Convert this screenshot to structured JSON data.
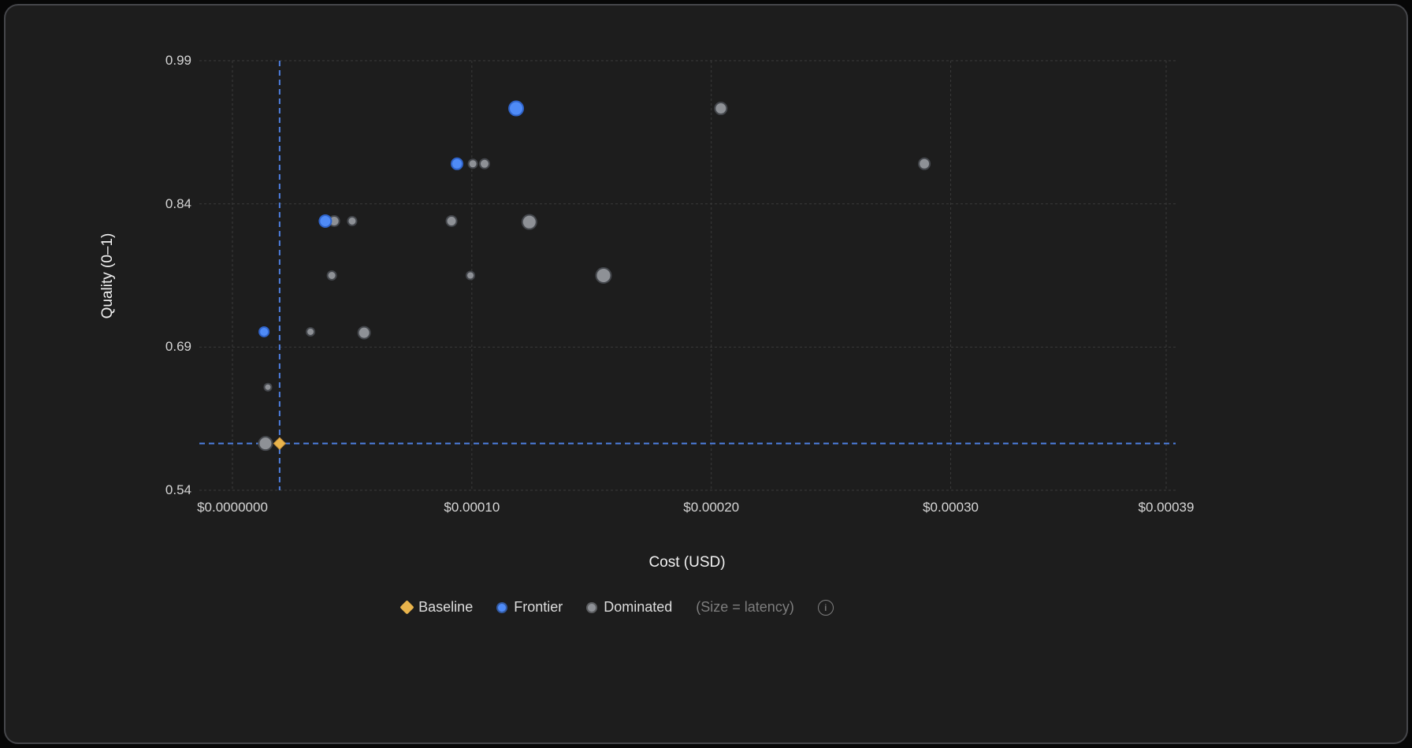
{
  "chart_data": {
    "type": "scatter",
    "title": "",
    "xlabel": "Cost (USD)",
    "ylabel": "Quality (0–1)",
    "xlim": [
      0,
      0.00039
    ],
    "ylim": [
      0.54,
      0.99
    ],
    "grid": true,
    "legend_position": "bottom",
    "size_encoding": "latency",
    "x_ticks": [
      {
        "value": 0,
        "label": "$0.0000000"
      },
      {
        "value": 0.0001,
        "label": "$0.00010"
      },
      {
        "value": 0.0002,
        "label": "$0.00020"
      },
      {
        "value": 0.0003,
        "label": "$0.00030"
      },
      {
        "value": 0.00039,
        "label": "$0.00039"
      }
    ],
    "y_ticks": [
      {
        "value": 0.99,
        "label": "0.99"
      },
      {
        "value": 0.84,
        "label": "0.84"
      },
      {
        "value": 0.69,
        "label": "0.69"
      },
      {
        "value": 0.54,
        "label": "0.54"
      }
    ],
    "baseline": {
      "x": 1.97e-05,
      "y": 0.589,
      "size": 7.5
    },
    "series": [
      {
        "name": "Dominated",
        "color": "#8e9196",
        "stroke": "#44474c",
        "points": [
          {
            "x": 1.38e-05,
            "y": 0.589,
            "r": 8.5
          },
          {
            "x": 1.48e-05,
            "y": 0.648,
            "r": 4.5
          },
          {
            "x": 3.26e-05,
            "y": 0.706,
            "r": 5
          },
          {
            "x": 5.5e-05,
            "y": 0.705,
            "r": 7.5
          },
          {
            "x": 4.15e-05,
            "y": 0.765,
            "r": 5.5
          },
          {
            "x": 9.94e-05,
            "y": 0.765,
            "r": 5
          },
          {
            "x": 0.000155,
            "y": 0.765,
            "r": 9.5
          },
          {
            "x": 4.25e-05,
            "y": 0.822,
            "r": 6.5
          },
          {
            "x": 5e-05,
            "y": 0.822,
            "r": 5.5
          },
          {
            "x": 9.15e-05,
            "y": 0.822,
            "r": 6.5
          },
          {
            "x": 0.000124,
            "y": 0.821,
            "r": 9
          },
          {
            "x": 0.0001004,
            "y": 0.882,
            "r": 5.5
          },
          {
            "x": 0.0001053,
            "y": 0.882,
            "r": 6
          },
          {
            "x": 0.000289,
            "y": 0.882,
            "r": 7
          },
          {
            "x": 0.000204,
            "y": 0.94,
            "r": 7.5
          }
        ]
      },
      {
        "name": "Frontier",
        "color": "#4f8bf7",
        "stroke": "#2f63c9",
        "points": [
          {
            "x": 1.32e-05,
            "y": 0.706,
            "r": 6
          },
          {
            "x": 3.88e-05,
            "y": 0.822,
            "r": 7.5
          },
          {
            "x": 9.38e-05,
            "y": 0.882,
            "r": 7
          },
          {
            "x": 0.0001185,
            "y": 0.94,
            "r": 9
          }
        ]
      }
    ]
  },
  "legend": {
    "baseline": "Baseline",
    "frontier": "Frontier",
    "dominated": "Dominated",
    "size_note": "(Size = latency)",
    "info_icon": "i"
  },
  "colors": {
    "baseline": "#e9b44c",
    "frontier": "#4f8bf7",
    "dominated": "#8e9196",
    "crosshair": "#4d7fe0",
    "panel_background": "#1d1d1d"
  }
}
